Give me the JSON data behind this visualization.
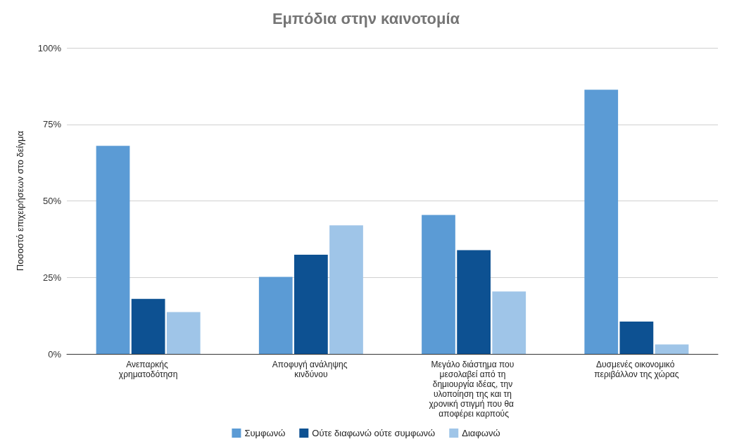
{
  "chart_data": {
    "type": "bar",
    "title": "Εμπόδια στην καινοτομία",
    "ylabel": "Ποσοστό επιχειρήσεων στο δείγμα",
    "categories": [
      "Ανεπαρκής χρηματοδότηση",
      "Αποφυγή ανάληψης κινδύνου",
      "Μεγάλο διάστημα που μεσολαβεί από τη δημιουργία ιδέας, την υλοποίηση της και τη χρονική στιγμή που θα  αποφέρει καρπούς",
      "Δυσμενές οικονομικό περιβάλλον της χώρας"
    ],
    "series": [
      {
        "name": "Συμφωνώ",
        "color": "#5b9bd5",
        "values": [
          68,
          25.2,
          45.4,
          86.3
        ]
      },
      {
        "name": "Ούτε διαφωνώ ούτε συμφωνώ",
        "color": "#0d5192",
        "values": [
          18,
          32.4,
          33.9,
          10.6
        ]
      },
      {
        "name": "Διαφωνώ",
        "color": "#9fc5e8",
        "values": [
          13.7,
          42,
          20.4,
          3.1
        ]
      }
    ],
    "ylim": [
      0,
      100
    ],
    "yticks": [
      {
        "value": 0,
        "label": "0%"
      },
      {
        "value": 25,
        "label": "25%"
      },
      {
        "value": 50,
        "label": "50%"
      },
      {
        "value": 75,
        "label": "75%"
      },
      {
        "value": 100,
        "label": "100%"
      }
    ],
    "grid": "y",
    "legend": "bottom"
  }
}
